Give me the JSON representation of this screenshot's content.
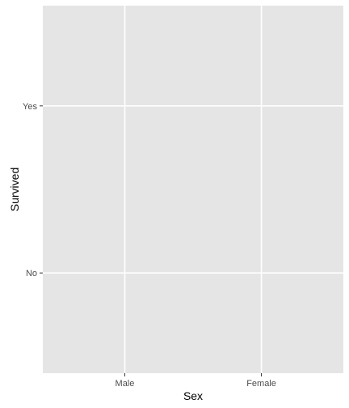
{
  "chart_data": {
    "type": "scatter",
    "title": "",
    "xlabel": "Sex",
    "ylabel": "Survived",
    "x_categories": [
      "Male",
      "Female"
    ],
    "y_categories": [
      "No",
      "Yes"
    ],
    "points": [],
    "grid": true,
    "legend": "none",
    "colors": {
      "panel_background": "#e5e5e5",
      "grid_line": "#ffffff",
      "tick_text": "#4d4d4d",
      "tick_mark": "#333333",
      "axis_title": "#000000"
    }
  }
}
